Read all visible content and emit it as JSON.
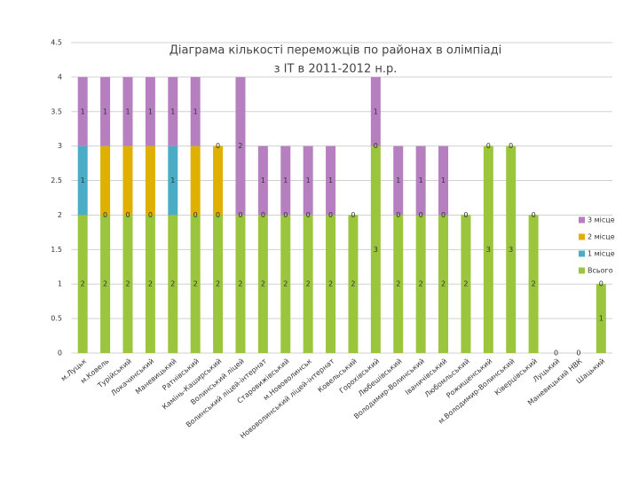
{
  "chart_data": {
    "type": "stacked_bar",
    "title": [
      "Діаграма кількості переможців по районах в олімпіаді",
      "з ІТ в 2011-2012 н.р."
    ],
    "categories": [
      "м.Луцьк",
      "м.Ковель",
      "Турійський",
      "Локачинський",
      "Маневицький",
      "Ратнівський",
      "Камінь-Каширський",
      "Волинський ліцей",
      "Волинський ліцей-інтернат",
      "Старовижівський",
      "м.Нововолинськ",
      "Нововолинський ліцей-інтернат",
      "Ковельський",
      "Горохівський",
      "Любешівський",
      "Володимир-Волинський",
      "Іваничівський",
      "Любомльський",
      "Рожищенський",
      "м.Володимир-Волинський",
      "Ківерцівський",
      "Луцький",
      "Маневицький НВК",
      "Шацький"
    ],
    "series": [
      {
        "name": "Всього",
        "color": "#9bc53d",
        "values": [
          2,
          2,
          2,
          2,
          2,
          2,
          2,
          2,
          2,
          2,
          2,
          2,
          2,
          3,
          2,
          2,
          2,
          2,
          3,
          3,
          2,
          0,
          0,
          1
        ],
        "value_labels": [
          "2",
          "2",
          "2",
          "2",
          "2",
          "2",
          "2",
          "2",
          "2",
          "2",
          "2",
          "2",
          "2",
          "3",
          "2",
          "2",
          "2",
          "2",
          "3",
          "3",
          "2",
          "0",
          "0",
          "1"
        ]
      },
      {
        "name": "1 місце",
        "color": "#4bacc6",
        "values": [
          1,
          0,
          0,
          0,
          1,
          0,
          0,
          0,
          0,
          0,
          0,
          0,
          0,
          0,
          0,
          0,
          0,
          0,
          0,
          0,
          0,
          0,
          0,
          0
        ],
        "value_labels": [
          "1",
          "0",
          "0",
          "0",
          "1",
          "0",
          "0",
          "0",
          "0",
          "0",
          "0",
          "0",
          "0",
          "0",
          "0",
          "0",
          "0",
          "0",
          "0",
          "0",
          "0",
          null,
          null,
          "0"
        ]
      },
      {
        "name": "2 місце",
        "color": "#e0b000",
        "values": [
          0,
          1,
          1,
          1,
          0,
          1,
          1,
          0,
          0,
          0,
          0,
          0,
          0,
          0,
          0,
          0,
          0,
          0,
          0,
          0,
          0,
          0,
          0,
          0
        ],
        "value_labels": [
          null,
          null,
          null,
          null,
          null,
          null,
          null,
          null,
          null,
          null,
          null,
          null,
          null,
          null,
          null,
          null,
          null,
          null,
          null,
          null,
          null,
          null,
          null,
          null
        ]
      },
      {
        "name": "3 місце",
        "color": "#b67fc0",
        "values": [
          1,
          1,
          1,
          1,
          1,
          1,
          0,
          2,
          1,
          1,
          1,
          1,
          0,
          1,
          1,
          1,
          1,
          0,
          0,
          0,
          0,
          0,
          0,
          0
        ],
        "value_labels": [
          "1",
          "1",
          "1",
          "1",
          "1",
          "1",
          "0",
          "2",
          "1",
          "1",
          "1",
          "1",
          null,
          "1",
          "1",
          "1",
          "1",
          null,
          null,
          null,
          null,
          null,
          null,
          null
        ]
      }
    ],
    "ylim": [
      0,
      4.5
    ],
    "yticks": [
      0,
      0.5,
      1,
      1.5,
      2,
      2.5,
      3,
      3.5,
      4,
      4.5
    ],
    "grid": true,
    "legend": "right"
  }
}
